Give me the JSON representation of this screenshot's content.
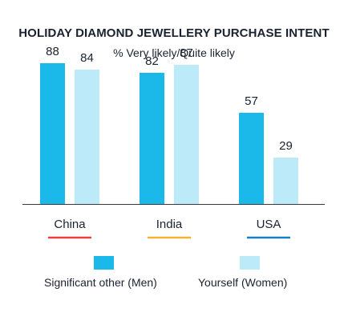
{
  "colors": {
    "men": "#1bb8ea",
    "women": "#bdeaf8",
    "axis": "#3a3a3a",
    "text": "#1a2230"
  },
  "chart_data": {
    "type": "bar",
    "title": "HOLIDAY DIAMOND JEWELLERY PURCHASE INTENT",
    "subtitle": "% Very likely/Quite likely",
    "categories": [
      "China",
      "India",
      "USA"
    ],
    "category_underline_colors": [
      "#e8413a",
      "#f5b335",
      "#1a7fc4"
    ],
    "series": [
      {
        "name": "Significant other (Men)",
        "values": [
          88,
          82,
          57
        ]
      },
      {
        "name": "Yourself (Women)",
        "values": [
          84,
          87,
          29
        ]
      }
    ],
    "ylim": [
      0,
      100
    ],
    "grid": false,
    "legend_position": "bottom",
    "data_labels": true
  }
}
